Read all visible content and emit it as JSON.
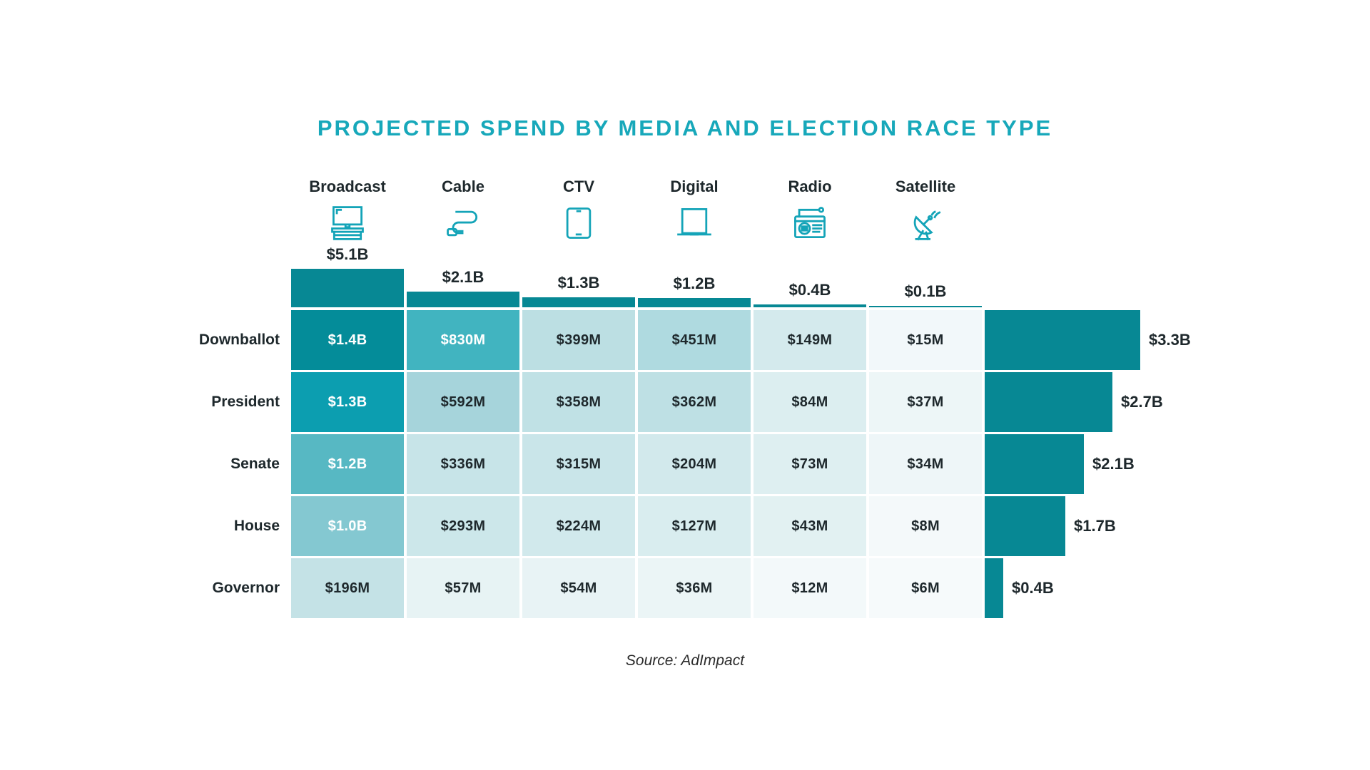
{
  "title": "PROJECTED SPEND BY MEDIA AND ELECTION RACE TYPE",
  "source": "Source: AdImpact",
  "colors": {
    "accent_teal": "#17A8BA",
    "icon_teal": "#14A4B8",
    "bar_teal": "#078894",
    "text_dark": "#1E282C",
    "text_light": "#FFFFFF",
    "background": "#FFFFFF"
  },
  "chart_data": {
    "type": "heatmap",
    "title": "PROJECTED SPEND BY MEDIA AND ELECTION RACE TYPE",
    "source": "Source: AdImpact",
    "units": "USD",
    "legend_position": "none",
    "columns": [
      {
        "label": "Broadcast",
        "icon": "broadcast-tv-icon",
        "total_label": "$5.1B",
        "total_billions": 5.1
      },
      {
        "label": "Cable",
        "icon": "cable-cord-icon",
        "total_label": "$2.1B",
        "total_billions": 2.1
      },
      {
        "label": "CTV",
        "icon": "ctv-screen-icon",
        "total_label": "$1.3B",
        "total_billions": 1.3
      },
      {
        "label": "Digital",
        "icon": "laptop-icon",
        "total_label": "$1.2B",
        "total_billions": 1.2
      },
      {
        "label": "Radio",
        "icon": "radio-icon",
        "total_label": "$0.4B",
        "total_billions": 0.4
      },
      {
        "label": "Satellite",
        "icon": "satellite-dish-icon",
        "total_label": "$0.1B",
        "total_billions": 0.1
      }
    ],
    "rows": [
      {
        "label": "Downballot",
        "total_label": "$3.3B",
        "total_billions": 3.3,
        "cells": [
          {
            "label": "$1.4B",
            "millions": 1400,
            "color": "#048C99",
            "text": "light"
          },
          {
            "label": "$830M",
            "millions": 830,
            "color": "#41B4C0",
            "text": "light"
          },
          {
            "label": "$399M",
            "millions": 399,
            "color": "#BCDFE3",
            "text": "dark"
          },
          {
            "label": "$451M",
            "millions": 451,
            "color": "#AFDAE0",
            "text": "dark"
          },
          {
            "label": "$149M",
            "millions": 149,
            "color": "#D4EAED",
            "text": "dark"
          },
          {
            "label": "$15M",
            "millions": 15,
            "color": "#F2F8FA",
            "text": "dark"
          }
        ]
      },
      {
        "label": "President",
        "total_label": "$2.7B",
        "total_billions": 2.7,
        "cells": [
          {
            "label": "$1.3B",
            "millions": 1300,
            "color": "#0C9EB0",
            "text": "light"
          },
          {
            "label": "$592M",
            "millions": 592,
            "color": "#A6D4DB",
            "text": "dark"
          },
          {
            "label": "$358M",
            "millions": 358,
            "color": "#C0E1E5",
            "text": "dark"
          },
          {
            "label": "$362M",
            "millions": 362,
            "color": "#BEE0E4",
            "text": "dark"
          },
          {
            "label": "$84M",
            "millions": 84,
            "color": "#DCEEF0",
            "text": "dark"
          },
          {
            "label": "$37M",
            "millions": 37,
            "color": "#EDF6F7",
            "text": "dark"
          }
        ]
      },
      {
        "label": "Senate",
        "total_label": "$2.1B",
        "total_billions": 2.1,
        "cells": [
          {
            "label": "$1.2B",
            "millions": 1200,
            "color": "#57B8C3",
            "text": "light"
          },
          {
            "label": "$336M",
            "millions": 336,
            "color": "#C7E4E8",
            "text": "dark"
          },
          {
            "label": "$315M",
            "millions": 315,
            "color": "#C9E5E9",
            "text": "dark"
          },
          {
            "label": "$204M",
            "millions": 204,
            "color": "#D2E9EC",
            "text": "dark"
          },
          {
            "label": "$73M",
            "millions": 73,
            "color": "#DEEFF1",
            "text": "dark"
          },
          {
            "label": "$34M",
            "millions": 34,
            "color": "#EEF6F8",
            "text": "dark"
          }
        ]
      },
      {
        "label": "House",
        "total_label": "$1.7B",
        "total_billions": 1.7,
        "cells": [
          {
            "label": "$1.0B",
            "millions": 1000,
            "color": "#84C8D1",
            "text": "light"
          },
          {
            "label": "$293M",
            "millions": 293,
            "color": "#CCE7EA",
            "text": "dark"
          },
          {
            "label": "$224M",
            "millions": 224,
            "color": "#D1E9EC",
            "text": "dark"
          },
          {
            "label": "$127M",
            "millions": 127,
            "color": "#D9EDEF",
            "text": "dark"
          },
          {
            "label": "$43M",
            "millions": 43,
            "color": "#E2F1F2",
            "text": "dark"
          },
          {
            "label": "$8M",
            "millions": 8,
            "color": "#F4F9FA",
            "text": "dark"
          }
        ]
      },
      {
        "label": "Governor",
        "total_label": "$0.4B",
        "total_billions": 0.4,
        "cells": [
          {
            "label": "$196M",
            "millions": 196,
            "color": "#C4E2E6",
            "text": "dark"
          },
          {
            "label": "$57M",
            "millions": 57,
            "color": "#E7F3F4",
            "text": "dark"
          },
          {
            "label": "$54M",
            "millions": 54,
            "color": "#E8F3F5",
            "text": "dark"
          },
          {
            "label": "$36M",
            "millions": 36,
            "color": "#EBF5F6",
            "text": "dark"
          },
          {
            "label": "$12M",
            "millions": 12,
            "color": "#F3F9FA",
            "text": "dark"
          },
          {
            "label": "$6M",
            "millions": 6,
            "color": "#F6FAFB",
            "text": "dark"
          }
        ]
      }
    ]
  }
}
